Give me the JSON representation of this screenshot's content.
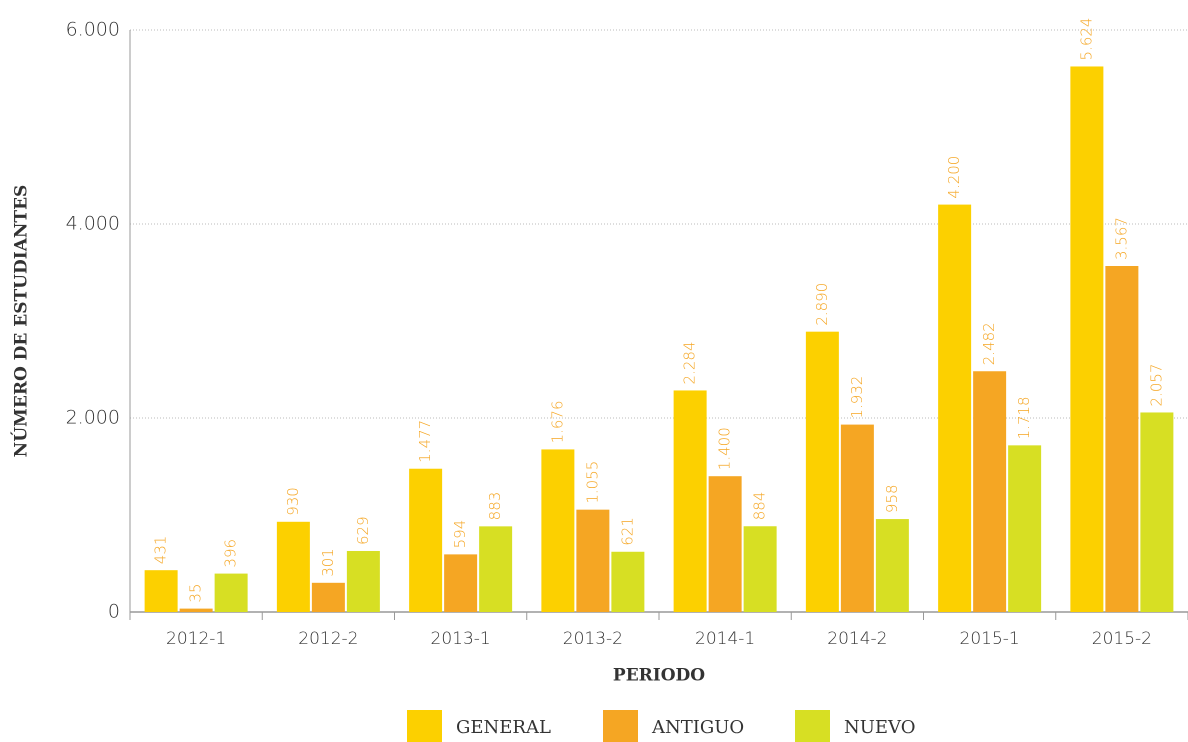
{
  "chart_data": {
    "type": "bar",
    "y_axis_label": "NÚMERO DE ESTUDIANTES",
    "x_axis_label": "PERIODO",
    "categories": [
      "2012-1",
      "2012-2",
      "2013-1",
      "2013-2",
      "2014-1",
      "2014-2",
      "2015-1",
      "2015-2"
    ],
    "series": [
      {
        "name": "GENERAL",
        "color": "#fcd000",
        "values": [
          431,
          930,
          1477,
          1676,
          2284,
          2890,
          4200,
          5624
        ],
        "value_labels": [
          "431",
          "930",
          "1.477",
          "1.676",
          "2.284",
          "2.890",
          "4.200",
          "5.624"
        ]
      },
      {
        "name": "ANTIGUO",
        "color": "#f5a623",
        "values": [
          35,
          301,
          594,
          1055,
          1400,
          1932,
          2482,
          3567
        ],
        "value_labels": [
          "35",
          "301",
          "594",
          "1.055",
          "1.400",
          "1.932",
          "2.482",
          "3.567"
        ]
      },
      {
        "name": "NUEVO",
        "color": "#d7df23",
        "values": [
          396,
          629,
          883,
          621,
          884,
          958,
          1718,
          2057
        ],
        "value_labels": [
          "396",
          "629",
          "883",
          "621",
          "884",
          "958",
          "1.718",
          "2.057"
        ]
      }
    ],
    "ylim": [
      0,
      6000
    ],
    "yticks": [
      0,
      {
        "value": 2000,
        "label": "2.000"
      },
      {
        "value": 4000,
        "label": "4.000"
      },
      {
        "value": 6000,
        "label": "6.000"
      }
    ],
    "grid": true,
    "value_label_color": "#f5a623"
  }
}
